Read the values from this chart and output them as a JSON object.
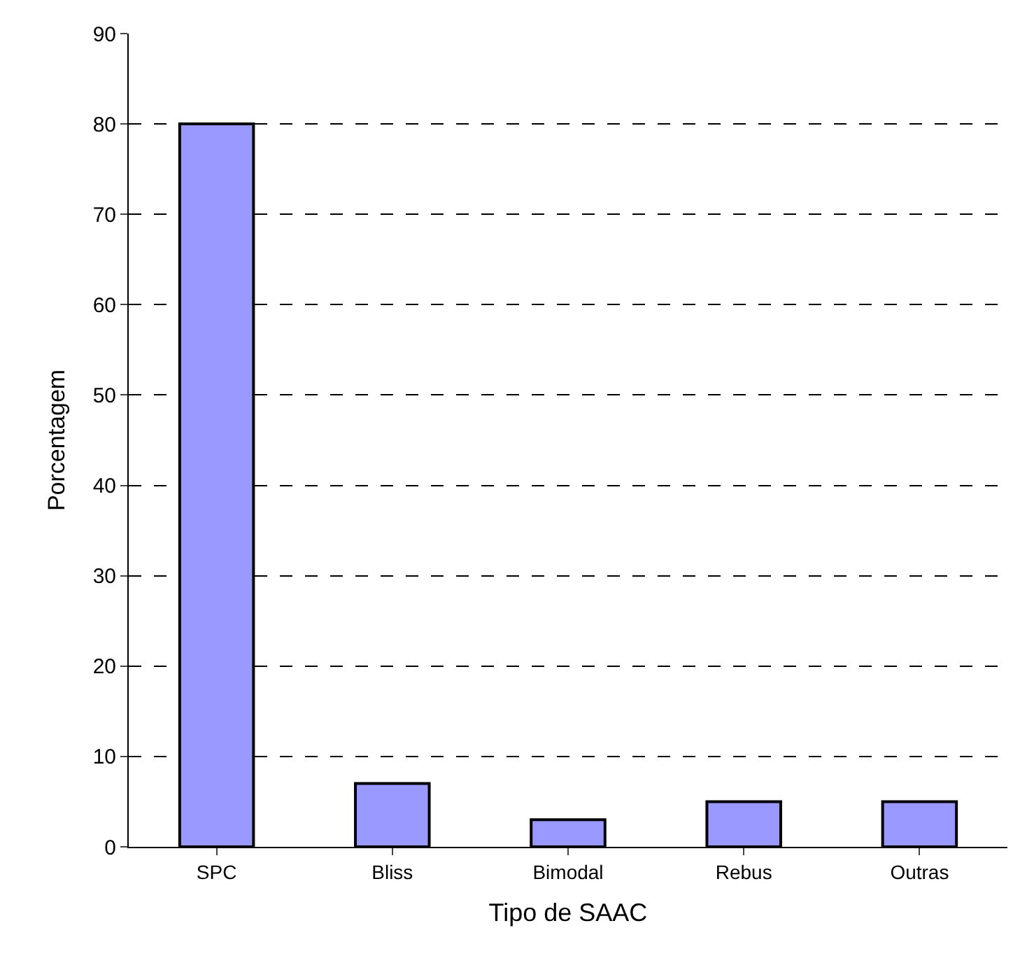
{
  "chart_data": {
    "type": "bar",
    "xlabel": "Tipo de SAAC",
    "ylabel": "Porcentagem",
    "categories": [
      "SPC",
      "Bliss",
      "Bimodal",
      "Rebus",
      "Outras"
    ],
    "values": [
      80,
      7,
      3,
      5,
      5
    ],
    "color": "#9999ff",
    "ylim": [
      0,
      90
    ],
    "yticks": [
      0,
      10,
      20,
      30,
      40,
      50,
      60,
      70,
      80,
      90
    ],
    "grid": "y",
    "line_style": "dashed"
  }
}
